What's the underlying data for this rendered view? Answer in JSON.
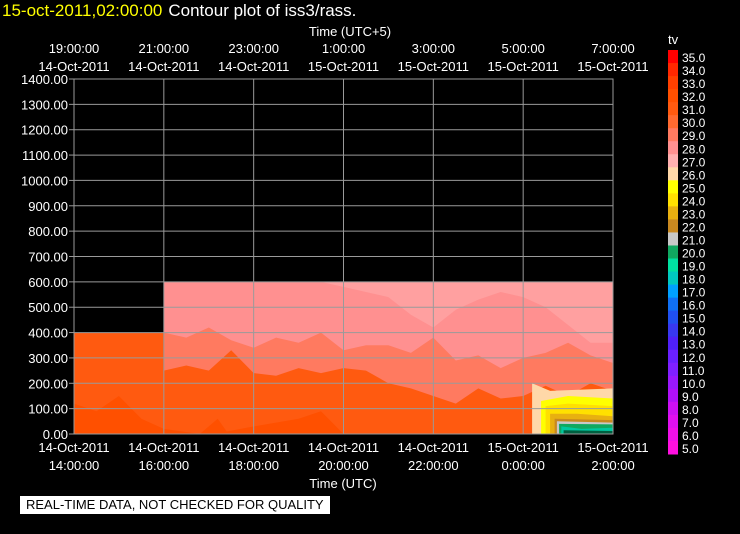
{
  "header": {
    "datetime": "15-oct-2011,02:00:00",
    "title": "Contour plot of iss3/rass."
  },
  "footer": {
    "note": "REAL-TIME DATA, NOT CHECKED FOR QUALITY"
  },
  "colors": {
    "background": "#000000",
    "grid": "#9a9a9a",
    "text": "#ffffff",
    "datetime_text": "#ffff00"
  },
  "chart_data": {
    "type": "heatmap",
    "title": "Contour plot of iss3/rass.",
    "xlabel": "Time (UTC)",
    "x2label": "Time (UTC+5)",
    "ylabel": "",
    "x_range_hours": [
      14,
      26
    ],
    "ylim": [
      0,
      1400
    ],
    "grid": true,
    "x_ticks": [
      {
        "hour": 14,
        "bottom": [
          "14-Oct-2011",
          "14:00:00"
        ],
        "top": [
          "19:00:00",
          "14-Oct-2011"
        ]
      },
      {
        "hour": 16,
        "bottom": [
          "14-Oct-2011",
          "16:00:00"
        ],
        "top": [
          "21:00:00",
          "14-Oct-2011"
        ]
      },
      {
        "hour": 18,
        "bottom": [
          "14-Oct-2011",
          "18:00:00"
        ],
        "top": [
          "23:00:00",
          "14-Oct-2011"
        ]
      },
      {
        "hour": 20,
        "bottom": [
          "14-Oct-2011",
          "20:00:00"
        ],
        "top": [
          "1:00:00",
          "15-Oct-2011"
        ]
      },
      {
        "hour": 22,
        "bottom": [
          "14-Oct-2011",
          "22:00:00"
        ],
        "top": [
          "3:00:00",
          "15-Oct-2011"
        ]
      },
      {
        "hour": 24,
        "bottom": [
          "15-Oct-2011",
          "0:00:00"
        ],
        "top": [
          "5:00:00",
          "15-Oct-2011"
        ]
      },
      {
        "hour": 26,
        "bottom": [
          "15-Oct-2011",
          "2:00:00"
        ],
        "top": [
          "7:00:00",
          "15-Oct-2011"
        ]
      }
    ],
    "y_ticks": [
      "0.00",
      "100.00",
      "200.00",
      "300.00",
      "400.00",
      "500.00",
      "600.00",
      "700.00",
      "800.00",
      "900.00",
      "1000.00",
      "1100.00",
      "1200.00",
      "1300.00",
      "1400.00"
    ],
    "colorbar": {
      "label": "tv",
      "levels": [
        "5.0",
        "6.0",
        "7.0",
        "8.0",
        "9.0",
        "10.0",
        "11.0",
        "12.0",
        "13.0",
        "14.0",
        "15.0",
        "16.0",
        "17.0",
        "18.0",
        "19.0",
        "20.0",
        "21.0",
        "22.0",
        "23.0",
        "24.0",
        "25.0",
        "26.0",
        "27.0",
        "28.0",
        "29.0",
        "30.0",
        "31.0",
        "32.0",
        "33.0",
        "34.0",
        "35.0"
      ],
      "colors": [
        "#ff10e0",
        "#f010e8",
        "#e010f0",
        "#cc10f4",
        "#b010f8",
        "#9a18fc",
        "#8020ff",
        "#6a20ff",
        "#5020f8",
        "#3838f0",
        "#2050f0",
        "#1070f4",
        "#00a0ff",
        "#00c8c0",
        "#00e0a0",
        "#10a860",
        "#c8c8c8",
        "#c88820",
        "#e8b010",
        "#ffe000",
        "#ffff00",
        "#ffd8a8",
        "#ffb0b0",
        "#ff9090",
        "#ff7a60",
        "#ff6a30",
        "#ff5a10",
        "#ff5000",
        "#ff4000",
        "#ff2800",
        "#ff0000"
      ]
    },
    "regions": [
      {
        "tv": 29,
        "color": "#ff5a10",
        "polygon": [
          [
            14,
            0
          ],
          [
            16,
            0
          ],
          [
            16,
            600
          ],
          [
            26,
            600
          ],
          [
            26,
            0
          ],
          [
            14,
            0
          ],
          [
            14,
            400
          ],
          [
            16,
            400
          ],
          [
            16,
            0
          ]
        ]
      },
      {
        "tv": 29,
        "color": "#ff5a10",
        "polygon": [
          [
            14,
            0
          ],
          [
            14,
            400
          ],
          [
            16,
            400
          ],
          [
            16,
            0
          ]
        ]
      },
      {
        "tv": 30,
        "color": "#ff5000",
        "polygon": [
          [
            14,
            0
          ],
          [
            14,
            120
          ],
          [
            14.5,
            90
          ],
          [
            15,
            150
          ],
          [
            15.5,
            60
          ],
          [
            16,
            20
          ],
          [
            16.8,
            0
          ],
          [
            17.2,
            60
          ],
          [
            17.4,
            10
          ],
          [
            18,
            30
          ],
          [
            19,
            60
          ],
          [
            19.5,
            90
          ],
          [
            20,
            0
          ]
        ]
      },
      {
        "tv": 28,
        "color": "#ff7a60",
        "polygon": [
          [
            16,
            600
          ],
          [
            26,
            600
          ],
          [
            26,
            170
          ],
          [
            25.5,
            200
          ],
          [
            25,
            150
          ],
          [
            24.5,
            190
          ],
          [
            24,
            150
          ],
          [
            23.5,
            140
          ],
          [
            23,
            180
          ],
          [
            22.5,
            120
          ],
          [
            22,
            150
          ],
          [
            21.5,
            180
          ],
          [
            21,
            200
          ],
          [
            20.5,
            250
          ],
          [
            20,
            260
          ],
          [
            19.5,
            240
          ],
          [
            19,
            260
          ],
          [
            18.5,
            230
          ],
          [
            18,
            240
          ],
          [
            17.5,
            330
          ],
          [
            17,
            250
          ],
          [
            16.5,
            270
          ],
          [
            16,
            250
          ]
        ]
      },
      {
        "tv": 27,
        "color": "#ff9090",
        "polygon": [
          [
            16,
            600
          ],
          [
            26,
            600
          ],
          [
            26,
            280
          ],
          [
            25.5,
            310
          ],
          [
            25,
            360
          ],
          [
            24.5,
            320
          ],
          [
            24,
            300
          ],
          [
            23.5,
            260
          ],
          [
            23,
            310
          ],
          [
            22.5,
            290
          ],
          [
            22,
            380
          ],
          [
            21.5,
            320
          ],
          [
            21,
            350
          ],
          [
            20.5,
            350
          ],
          [
            20,
            330
          ],
          [
            19.5,
            400
          ],
          [
            19,
            360
          ],
          [
            18.5,
            380
          ],
          [
            18,
            340
          ],
          [
            17.5,
            370
          ],
          [
            17,
            420
          ],
          [
            16.5,
            380
          ],
          [
            16,
            400
          ]
        ]
      },
      {
        "tv": 26,
        "color": "#ffa0a0",
        "polygon": [
          [
            19.5,
            600
          ],
          [
            26,
            600
          ],
          [
            26,
            360
          ],
          [
            25.5,
            360
          ],
          [
            25,
            430
          ],
          [
            24.5,
            500
          ],
          [
            24,
            540
          ],
          [
            23.5,
            560
          ],
          [
            23,
            530
          ],
          [
            22.5,
            490
          ],
          [
            22,
            420
          ],
          [
            21.5,
            470
          ],
          [
            21,
            540
          ],
          [
            20.5,
            560
          ],
          [
            20,
            580
          ]
        ]
      },
      {
        "tv": 27,
        "color": "#ff9090",
        "polygon": [
          [
            16.4,
            600
          ],
          [
            17,
            560
          ],
          [
            17.6,
            570
          ],
          [
            18,
            600
          ]
        ]
      },
      {
        "tv": 25,
        "color": "#ffd8a8",
        "polygon": [
          [
            24.2,
            0
          ],
          [
            24.2,
            200
          ],
          [
            24.6,
            170
          ],
          [
            26,
            180
          ],
          [
            26,
            0
          ]
        ]
      },
      {
        "tv": 24,
        "color": "#ffff00",
        "polygon": [
          [
            24.4,
            0
          ],
          [
            24.4,
            130
          ],
          [
            25,
            150
          ],
          [
            26,
            140
          ],
          [
            26,
            0
          ]
        ]
      },
      {
        "tv": 23,
        "color": "#ffe000",
        "polygon": [
          [
            24.5,
            0
          ],
          [
            24.5,
            110
          ],
          [
            25,
            120
          ],
          [
            26,
            110
          ],
          [
            26,
            0
          ]
        ]
      },
      {
        "tv": 22,
        "color": "#e8b010",
        "polygon": [
          [
            24.6,
            0
          ],
          [
            24.6,
            80
          ],
          [
            25.2,
            80
          ],
          [
            26,
            70
          ],
          [
            26,
            0
          ]
        ]
      },
      {
        "tv": 21,
        "color": "#c88820",
        "polygon": [
          [
            24.7,
            0
          ],
          [
            24.7,
            60
          ],
          [
            26,
            55
          ],
          [
            26,
            0
          ]
        ]
      },
      {
        "tv": 20,
        "color": "#c8c8c8",
        "polygon": [
          [
            24.75,
            0
          ],
          [
            24.75,
            50
          ],
          [
            26,
            45
          ],
          [
            26,
            0
          ]
        ]
      },
      {
        "tv": 19,
        "color": "#10a860",
        "polygon": [
          [
            24.8,
            0
          ],
          [
            24.8,
            40
          ],
          [
            26,
            38
          ],
          [
            26,
            0
          ]
        ]
      },
      {
        "tv": 18,
        "color": "#00c8a0",
        "polygon": [
          [
            24.85,
            0
          ],
          [
            24.85,
            30
          ],
          [
            25.3,
            20
          ],
          [
            26,
            25
          ],
          [
            26,
            0
          ]
        ]
      },
      {
        "tv": 17,
        "color": "#006040",
        "polygon": [
          [
            24.9,
            0
          ],
          [
            24.9,
            15
          ],
          [
            26,
            12
          ],
          [
            26,
            0
          ]
        ]
      }
    ]
  }
}
